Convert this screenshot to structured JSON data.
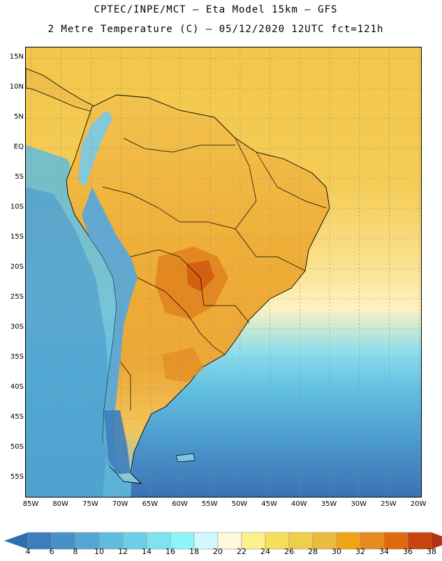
{
  "header": {
    "line1": "CPTEC/INPE/MCT –  Eta Model 15km – GFS",
    "line2": "2 Metre Temperature (C) – 05/12/2020 12UTC fct=121h"
  },
  "axes": {
    "lat_labels": [
      "15N",
      "10N",
      "5N",
      "EQ",
      "5S",
      "10S",
      "15S",
      "20S",
      "25S",
      "30S",
      "35S",
      "40S",
      "45S",
      "50S",
      "55S"
    ],
    "lon_labels": [
      "85W",
      "80W",
      "75W",
      "70W",
      "65W",
      "60W",
      "55W",
      "50W",
      "45W",
      "40W",
      "35W",
      "30W",
      "25W",
      "20W"
    ]
  },
  "colorbar": {
    "ticks": [
      "4",
      "6",
      "8",
      "10",
      "12",
      "14",
      "16",
      "18",
      "20",
      "22",
      "24",
      "26",
      "28",
      "30",
      "32",
      "34",
      "36",
      "38"
    ],
    "colors": [
      "#3b7dbd",
      "#4692c8",
      "#52a7d3",
      "#5fbcdd",
      "#6ccfe6",
      "#7fe2f0",
      "#8cf5fa",
      "#d2f7fc",
      "#fdf8dc",
      "#fbf08c",
      "#f7de5a",
      "#f1cd4c",
      "#edbb3c",
      "#f0a313",
      "#e98a1f",
      "#df6a0c",
      "#c9430b",
      "#b23416",
      "#2f6eb0"
    ]
  },
  "map": {
    "colors": {
      "ocean_deep": "#3c78ba",
      "ocean_mid": "#52a8d6",
      "ocean_light": "#66c4e2",
      "ocean_cyan": "#8cdcec",
      "ocean_warm": "#fbe08c",
      "ocean_hot": "#f3c44a",
      "land_hot": "#eba030",
      "land_warm": "#f0b845",
      "andes": "#6cb6dc"
    }
  }
}
